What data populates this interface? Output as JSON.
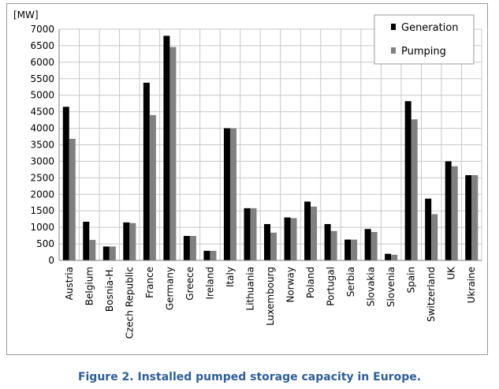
{
  "caption": "Figure 2. Installed pumped storage capacity in Europe.",
  "chart_data": {
    "type": "bar",
    "unit_label": "[MW]",
    "ylim": [
      0,
      7000
    ],
    "yticks": [
      0,
      500,
      1000,
      1500,
      2000,
      2500,
      3000,
      3500,
      4000,
      4500,
      5000,
      5500,
      6000,
      6500,
      7000
    ],
    "grid": true,
    "legend_position": "top-right",
    "categories": [
      "Austria",
      "Belgium",
      "Bosnia-H.",
      "Czech Republic",
      "France",
      "Germany",
      "Greece",
      "Ireland",
      "Italy",
      "Lithuania",
      "Luxembourg",
      "Norway",
      "Poland",
      "Portugal",
      "Serbia",
      "Slovakia",
      "Slovenia",
      "Spain",
      "Switzerland",
      "UK",
      "Ukraine"
    ],
    "series": [
      {
        "name": "Generation",
        "color": "#000000",
        "values": [
          4650,
          1170,
          420,
          1150,
          5380,
          6800,
          740,
          290,
          4000,
          1580,
          1100,
          1300,
          1780,
          1100,
          630,
          950,
          200,
          4820,
          1870,
          3000,
          2580
        ]
      },
      {
        "name": "Pumping",
        "color": "#808080",
        "values": [
          3680,
          620,
          420,
          1130,
          4400,
          6460,
          740,
          290,
          4000,
          1580,
          840,
          1280,
          1630,
          890,
          630,
          860,
          170,
          4270,
          1400,
          2850,
          2580
        ]
      }
    ]
  }
}
